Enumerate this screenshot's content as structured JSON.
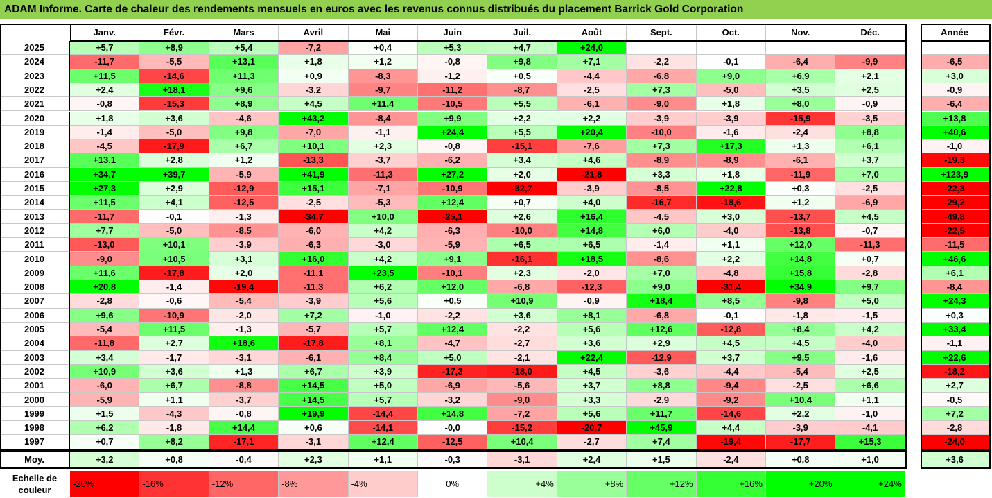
{
  "title": "ADAM Informe. Carte de chaleur des rendements mensuels en euros avec les revenus connus distribués du placement Barrick Gold Corporation",
  "chart_data": {
    "type": "heatmap",
    "months": [
      "Janv.",
      "Févr.",
      "Mars",
      "Avril",
      "Mai",
      "Juin",
      "Juil.",
      "Août",
      "Sept.",
      "Oct.",
      "Nov.",
      "Déc."
    ],
    "year_column_label": "Année",
    "average_row_label": "Moy.",
    "rows": [
      {
        "year": "2025",
        "values": [
          "+5,7",
          "+8,9",
          "+5,4",
          "-7,2",
          "+0,4",
          "+5,3",
          "+4,7",
          "+24,0",
          "",
          "",
          "",
          ""
        ],
        "annual": ""
      },
      {
        "year": "2024",
        "values": [
          "-11,7",
          "-5,5",
          "+13,1",
          "+1,8",
          "+1,2",
          "-0,8",
          "+9,8",
          "+7,1",
          "-2,2",
          "-0,1",
          "-6,4",
          "-9,9"
        ],
        "annual": "-6,5"
      },
      {
        "year": "2023",
        "values": [
          "+11,5",
          "-14,6",
          "+11,3",
          "+0,9",
          "-8,3",
          "-1,2",
          "+0,5",
          "-4,4",
          "-6,8",
          "+9,0",
          "+6,9",
          "+2,1"
        ],
        "annual": "+3,0"
      },
      {
        "year": "2022",
        "values": [
          "+2,4",
          "+18,1",
          "+9,6",
          "-3,2",
          "-9,7",
          "-11,2",
          "-8,7",
          "-2,5",
          "+7,3",
          "-5,0",
          "+3,5",
          "+2,5"
        ],
        "annual": "-0,9"
      },
      {
        "year": "2021",
        "values": [
          "-0,8",
          "-15,3",
          "+8,9",
          "+4,5",
          "+11,4",
          "-10,5",
          "+5,5",
          "-6,1",
          "-9,0",
          "+1,8",
          "+8,0",
          "-0,9"
        ],
        "annual": "-6,4"
      },
      {
        "year": "2020",
        "values": [
          "+1,8",
          "+3,6",
          "-4,6",
          "+43,2",
          "-8,4",
          "+9,9",
          "+2,2",
          "+2,2",
          "-3,9",
          "-3,9",
          "-15,9",
          "-3,5"
        ],
        "annual": "+13,8"
      },
      {
        "year": "2019",
        "values": [
          "-1,4",
          "-5,0",
          "+9,8",
          "-7,0",
          "-1,1",
          "+24,4",
          "+5,5",
          "+20,4",
          "-10,0",
          "-1,6",
          "-2,4",
          "+8,8"
        ],
        "annual": "+40,6"
      },
      {
        "year": "2018",
        "values": [
          "-4,5",
          "-17,9",
          "+6,7",
          "+10,1",
          "+2,3",
          "-0,8",
          "-15,1",
          "-7,6",
          "+7,3",
          "+17,3",
          "+1,3",
          "+6,1"
        ],
        "annual": "-1,0"
      },
      {
        "year": "2017",
        "values": [
          "+13,1",
          "+2,8",
          "+1,2",
          "-13,3",
          "-3,7",
          "-6,2",
          "+3,4",
          "+4,6",
          "-8,9",
          "-8,9",
          "-6,1",
          "+3,7"
        ],
        "annual": "-19,3"
      },
      {
        "year": "2016",
        "values": [
          "+34,7",
          "+39,7",
          "-5,9",
          "+41,9",
          "-11,3",
          "+27,2",
          "+2,0",
          "-21,8",
          "+3,3",
          "+1,8",
          "-11,9",
          "+7,0"
        ],
        "annual": "+123,9"
      },
      {
        "year": "2015",
        "values": [
          "+27,3",
          "+2,9",
          "-12,9",
          "+15,1",
          "-7,1",
          "-10,9",
          "-32,7",
          "-3,9",
          "-8,5",
          "+22,8",
          "+0,3",
          "-2,5"
        ],
        "annual": "-22,3"
      },
      {
        "year": "2014",
        "values": [
          "+11,5",
          "+4,1",
          "-12,5",
          "-2,5",
          "-5,3",
          "+12,4",
          "+0,7",
          "+4,0",
          "-16,7",
          "-18,6",
          "+1,2",
          "-6,9"
        ],
        "annual": "-29,2"
      },
      {
        "year": "2013",
        "values": [
          "-11,7",
          "-0,1",
          "-1,3",
          "-34,7",
          "+10,0",
          "-25,1",
          "+2,6",
          "+16,4",
          "-4,5",
          "+3,0",
          "-13,7",
          "+4,5"
        ],
        "annual": "-49,8"
      },
      {
        "year": "2012",
        "values": [
          "+7,7",
          "-5,0",
          "-8,5",
          "-6,0",
          "+4,2",
          "-6,3",
          "-10,0",
          "+14,8",
          "+6,0",
          "-4,0",
          "-13,8",
          "-0,7"
        ],
        "annual": "-22,5"
      },
      {
        "year": "2011",
        "values": [
          "-13,0",
          "+10,1",
          "-3,9",
          "-6,3",
          "-3,0",
          "-5,9",
          "+6,5",
          "+6,5",
          "-1,4",
          "+1,1",
          "+12,0",
          "-11,3"
        ],
        "annual": "-11,5"
      },
      {
        "year": "2010",
        "values": [
          "-9,0",
          "+10,5",
          "+3,1",
          "+16,0",
          "+4,2",
          "+9,1",
          "-16,1",
          "+18,5",
          "-8,6",
          "+2,2",
          "+14,8",
          "+0,7"
        ],
        "annual": "+46,6"
      },
      {
        "year": "2009",
        "values": [
          "+11,6",
          "-17,8",
          "+2,0",
          "-11,1",
          "+23,5",
          "-10,1",
          "+2,3",
          "-2,0",
          "+7,0",
          "-4,8",
          "+15,8",
          "-2,8"
        ],
        "annual": "+6,1"
      },
      {
        "year": "2008",
        "values": [
          "+20,8",
          "-1,4",
          "-19,4",
          "-11,3",
          "+6,2",
          "+12,0",
          "-6,8",
          "-12,3",
          "+9,0",
          "-31,4",
          "+34,9",
          "+9,7"
        ],
        "annual": "-8,4"
      },
      {
        "year": "2007",
        "values": [
          "-2,8",
          "-0,6",
          "-5,4",
          "-3,9",
          "+5,6",
          "+0,5",
          "+10,9",
          "-0,9",
          "+18,4",
          "+8,5",
          "-9,8",
          "+5,0"
        ],
        "annual": "+24,3"
      },
      {
        "year": "2006",
        "values": [
          "+9,6",
          "-10,9",
          "-2,0",
          "+7,2",
          "-1,0",
          "-2,2",
          "+3,6",
          "+8,1",
          "-6,8",
          "-0,1",
          "-1,8",
          "-1,5"
        ],
        "annual": "+0,3"
      },
      {
        "year": "2005",
        "values": [
          "-5,4",
          "+11,5",
          "-1,3",
          "-5,7",
          "+5,7",
          "+12,4",
          "-2,2",
          "+5,6",
          "+12,6",
          "-12,8",
          "+8,4",
          "+4,2"
        ],
        "annual": "+33,4"
      },
      {
        "year": "2004",
        "values": [
          "-11,8",
          "+2,7",
          "+18,6",
          "-17,8",
          "+8,1",
          "-4,7",
          "-2,7",
          "+3,6",
          "+2,9",
          "+4,5",
          "+4,5",
          "-4,0"
        ],
        "annual": "-1,1"
      },
      {
        "year": "2003",
        "values": [
          "+3,4",
          "-1,7",
          "-3,1",
          "-6,1",
          "+8,4",
          "+5,0",
          "-2,1",
          "+22,4",
          "-12,9",
          "+3,7",
          "+9,5",
          "-1,6"
        ],
        "annual": "+22,6"
      },
      {
        "year": "2002",
        "values": [
          "+10,9",
          "+3,6",
          "+1,3",
          "+6,7",
          "+3,9",
          "-17,3",
          "-18,0",
          "+4,5",
          "-3,6",
          "-4,4",
          "-5,4",
          "+2,5"
        ],
        "annual": "-18,2"
      },
      {
        "year": "2001",
        "values": [
          "-6,0",
          "+6,7",
          "-8,8",
          "+14,5",
          "+5,0",
          "-6,9",
          "-5,6",
          "+3,7",
          "+8,8",
          "-9,4",
          "-2,5",
          "+6,6"
        ],
        "annual": "+2,7"
      },
      {
        "year": "2000",
        "values": [
          "-5,9",
          "+1,1",
          "-3,7",
          "+14,5",
          "+5,7",
          "-3,2",
          "-9,0",
          "+3,3",
          "-2,9",
          "-9,2",
          "+10,4",
          "+1,1"
        ],
        "annual": "-0,5"
      },
      {
        "year": "1999",
        "values": [
          "+1,5",
          "-4,3",
          "-0,8",
          "+19,9",
          "-14,4",
          "+14,8",
          "-7,2",
          "+5,6",
          "+11,7",
          "-14,6",
          "+2,2",
          "-1,0"
        ],
        "annual": "+7,2"
      },
      {
        "year": "1998",
        "values": [
          "+6,2",
          "-1,8",
          "+14,4",
          "+0,6",
          "-14,1",
          "-0,0",
          "-15,2",
          "-20,7",
          "+45,9",
          "+4,4",
          "-3,9",
          "-4,1"
        ],
        "annual": "-2,8"
      },
      {
        "year": "1997",
        "values": [
          "+0,7",
          "+8,2",
          "-17,1",
          "-3,1",
          "+12,4",
          "-12,5",
          "+10,4",
          "-2,7",
          "+7,4",
          "-19,4",
          "-17,7",
          "+15,3"
        ],
        "annual": "-24,0"
      }
    ],
    "averages": [
      "+3,2",
      "+0,8",
      "-0,4",
      "+2,3",
      "+1,1",
      "-0,3",
      "-3,1",
      "+2,4",
      "+1,5",
      "-2,4",
      "+0,8",
      "+1,0"
    ],
    "average_annual": "+3,6",
    "color_scale": {
      "label": "Echelle de couleur",
      "steps": [
        {
          "label": "-20%",
          "color": "#ff0000"
        },
        {
          "label": "-16%",
          "color": "#ff3333"
        },
        {
          "label": "-12%",
          "color": "#ff6666"
        },
        {
          "label": "-8%",
          "color": "#ff9999"
        },
        {
          "label": "-4%",
          "color": "#ffcccc"
        },
        {
          "label": "0%",
          "color": "#ffffff"
        },
        {
          "label": "+4%",
          "color": "#ccffcc"
        },
        {
          "label": "+8%",
          "color": "#99ff99"
        },
        {
          "label": "+12%",
          "color": "#66ff66"
        },
        {
          "label": "+16%",
          "color": "#33ff33"
        },
        {
          "label": "+20%",
          "color": "#00ff00"
        },
        {
          "label": "+24%",
          "color": "#00ff00"
        }
      ]
    }
  }
}
